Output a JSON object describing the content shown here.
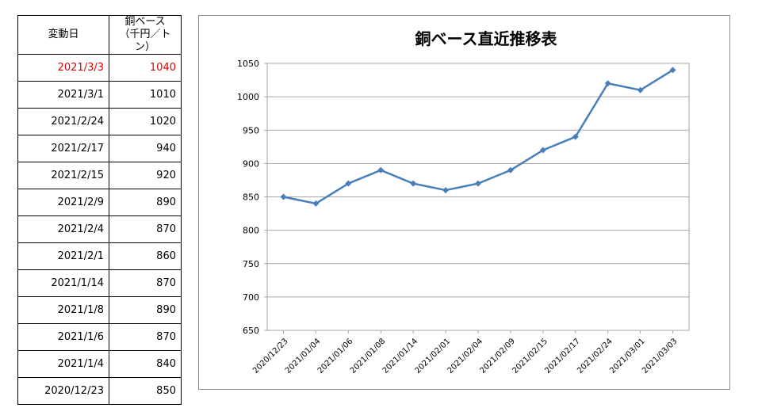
{
  "table": {
    "header_date": "変動日",
    "header_value_line1": "銅ベース",
    "header_value_line2": "（千円／トン）",
    "rows": [
      {
        "date": "2021/3/3",
        "value": "1040",
        "highlight": true
      },
      {
        "date": "2021/3/1",
        "value": "1010"
      },
      {
        "date": "2021/2/24",
        "value": "1020"
      },
      {
        "date": "2021/2/17",
        "value": "940"
      },
      {
        "date": "2021/2/15",
        "value": "920"
      },
      {
        "date": "2021/2/9",
        "value": "890"
      },
      {
        "date": "2021/2/4",
        "value": "870"
      },
      {
        "date": "2021/2/1",
        "value": "860"
      },
      {
        "date": "2021/1/14",
        "value": "870"
      },
      {
        "date": "2021/1/8",
        "value": "890"
      },
      {
        "date": "2021/1/6",
        "value": "870"
      },
      {
        "date": "2021/1/4",
        "value": "840"
      },
      {
        "date": "2020/12/23",
        "value": "850"
      }
    ]
  },
  "colors": {
    "highlight": "#e00000",
    "line": "#4a7ebb",
    "grid": "#a6a6a6"
  },
  "chart_data": {
    "type": "line",
    "title": "銅ベース直近推移表",
    "xlabel": "",
    "ylabel": "",
    "categories": [
      "2020/12/23",
      "2021/01/04",
      "2021/01/06",
      "2021/01/08",
      "2021/01/14",
      "2021/02/01",
      "2021/02/04",
      "2021/02/09",
      "2021/02/15",
      "2021/02/17",
      "2021/02/24",
      "2021/03/01",
      "2021/03/03"
    ],
    "series": [
      {
        "values": [
          850,
          840,
          870,
          890,
          870,
          860,
          870,
          890,
          920,
          940,
          1020,
          1010,
          1040
        ]
      }
    ],
    "ylim": [
      650,
      1050
    ],
    "yticks": [
      650,
      700,
      750,
      800,
      850,
      900,
      950,
      1000,
      1050
    ],
    "grid": true,
    "legend": "none"
  }
}
